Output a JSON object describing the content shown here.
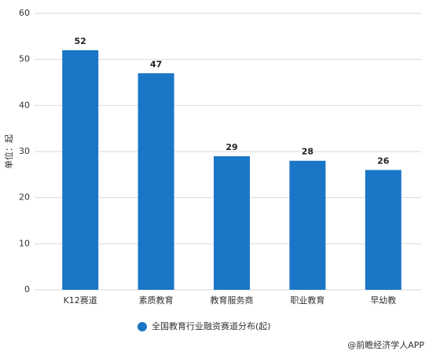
{
  "chart_data": {
    "type": "bar",
    "y_label": "单位：起",
    "categories": [
      "K12赛道",
      "素质教育",
      "教育服务商",
      "职业教育",
      "早幼教"
    ],
    "series": [
      {
        "name": "全国教育行业融资赛道分布(起)",
        "color": "#1a76c6",
        "values": [
          52,
          47,
          29,
          28,
          26
        ]
      }
    ],
    "ylim": [
      0,
      60
    ],
    "yticks": [
      0,
      10,
      20,
      30,
      40,
      50,
      60
    ],
    "grid": true,
    "legend": "bottom",
    "source": "@前瞻经济学人APP"
  }
}
